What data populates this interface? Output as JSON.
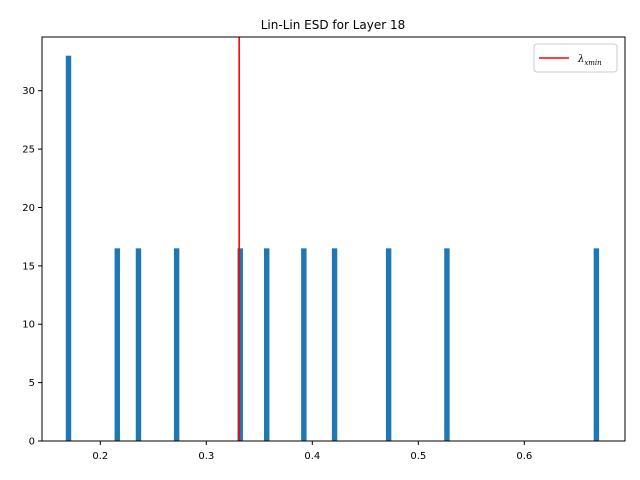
{
  "chart_data": {
    "type": "bar",
    "title": "Lin-Lin ESD for Layer 18",
    "xlabel": "",
    "ylabel": "",
    "xlim": [
      0.145,
      0.695
    ],
    "ylim": [
      0,
      34.6
    ],
    "grid": false,
    "legend_placement": "top-right",
    "bar_color": "#1f77b4",
    "bar_width": 0.0051,
    "x": [
      0.17,
      0.216,
      0.236,
      0.272,
      0.332,
      0.357,
      0.392,
      0.421,
      0.472,
      0.527,
      0.668
    ],
    "values": [
      33.0,
      16.5,
      16.5,
      16.5,
      16.5,
      16.5,
      16.5,
      16.5,
      16.5,
      16.5,
      16.5
    ],
    "vline": {
      "x": 0.331,
      "label": "λ",
      "label_sub": "xmin",
      "color": "#ff0000"
    },
    "xticks": [
      0.2,
      0.3,
      0.4,
      0.5,
      0.6
    ],
    "xtick_labels": [
      "0.2",
      "0.3",
      "0.4",
      "0.5",
      "0.6"
    ],
    "yticks": [
      0,
      5,
      10,
      15,
      20,
      25,
      30
    ],
    "ytick_labels": [
      "0",
      "5",
      "10",
      "15",
      "20",
      "25",
      "30"
    ]
  }
}
